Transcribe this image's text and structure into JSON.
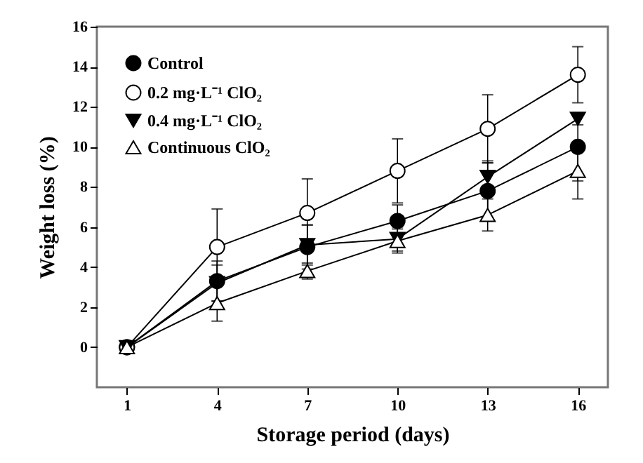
{
  "chart_data": {
    "type": "line",
    "xlabel": "Storage period (days)",
    "ylabel": "Weight loss (%)",
    "x": [
      1,
      4,
      7,
      10,
      13,
      16
    ],
    "xlim": [
      0,
      17
    ],
    "xticks": [
      1,
      4,
      7,
      10,
      13,
      16
    ],
    "ylim": [
      -2,
      16
    ],
    "yticks": [
      0,
      2,
      4,
      6,
      8,
      10,
      12,
      14,
      16
    ],
    "grid": false,
    "legend": "top left",
    "line_style": "solid",
    "series": [
      {
        "name": "Control",
        "color": "#000000",
        "marker": "circle",
        "values": [
          0,
          3.3,
          5.0,
          6.3,
          7.8,
          10.0
        ],
        "errors": [
          null,
          1.0,
          1.1,
          0.8,
          1.4,
          1.7
        ]
      },
      {
        "name": "0.2 mg·L⁻¹ ClO₂",
        "color": "#000000",
        "marker": "circle-open",
        "values": [
          0,
          5.0,
          6.7,
          8.8,
          10.9,
          13.6
        ],
        "errors": [
          null,
          1.9,
          1.7,
          1.6,
          1.7,
          1.4
        ]
      },
      {
        "name": "0.4 mg·L⁻¹ ClO₂",
        "color": "#000000",
        "marker": "triangle-down",
        "values": [
          0,
          3.2,
          5.1,
          5.4,
          8.5,
          11.4
        ],
        "errors": [
          null,
          0.9,
          1.0,
          0.6,
          0.8,
          0.3
        ]
      },
      {
        "name": "Continuous ClO₂",
        "color": "#000000",
        "marker": "triangle-open",
        "values": [
          0,
          2.2,
          3.8,
          5.3,
          6.6,
          8.8
        ],
        "errors": [
          null,
          0.9,
          0.4,
          0.6,
          0.8,
          1.4
        ]
      }
    ]
  }
}
